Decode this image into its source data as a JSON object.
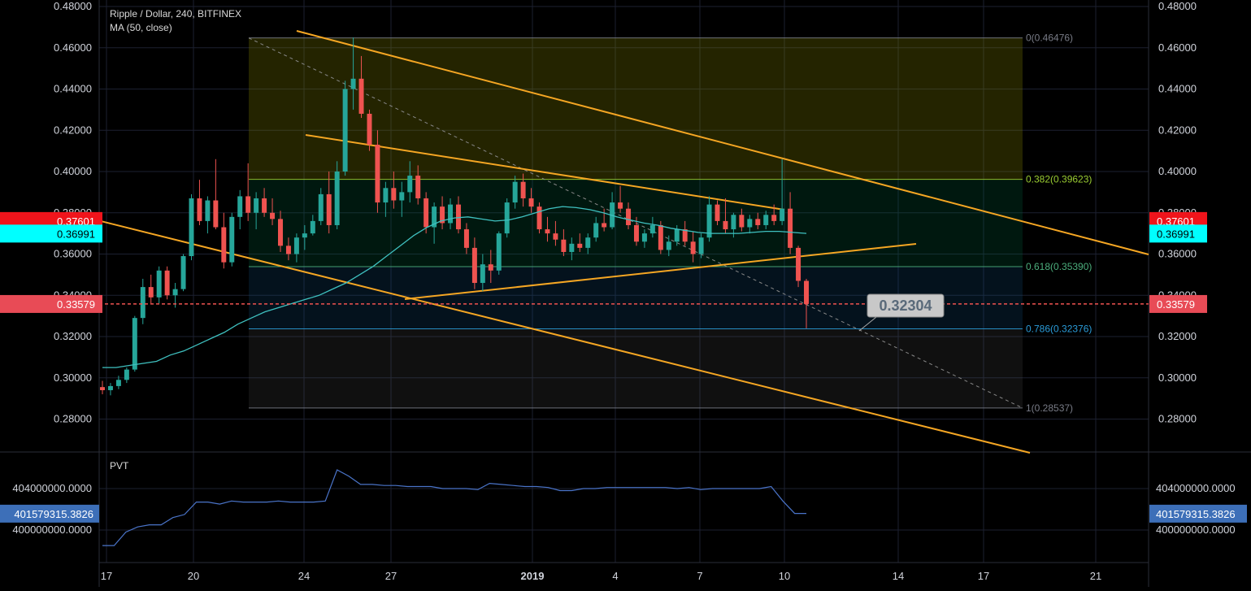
{
  "chart_data": {
    "type": "candlestick",
    "title": "Ripple / Dollar, 240, BITFINEX",
    "indicator_label": "MA (50, close)",
    "pvt_label": "PVT",
    "x_ticks": [
      "17",
      "20",
      "24",
      "27",
      "2019",
      "4",
      "7",
      "10",
      "14",
      "17",
      "21"
    ],
    "y_ticks": [
      "0.48000",
      "0.46000",
      "0.44000",
      "0.42000",
      "0.40000",
      "0.38000",
      "0.36000",
      "0.34000",
      "0.32000",
      "0.30000",
      "0.28000"
    ],
    "ylim": [
      0.276,
      0.4818
    ],
    "pvt_ticks": [
      "404000000.0000",
      "400000000.0000"
    ],
    "pvt_ylim": [
      397600000,
      406300000
    ],
    "price_badges": [
      {
        "value": "0.37601",
        "color": "#f0141b",
        "text_color": "#ffffff"
      },
      {
        "value": "0.36991",
        "color": "#00ffff",
        "text_color": "#000000"
      },
      {
        "value": "0.33579",
        "color": "#e84b56",
        "text_color": "#ffffff"
      }
    ],
    "pvt_badge": {
      "value": "401579315.3826",
      "color": "#3d6fb8",
      "text_color": "#ffffff"
    },
    "last_price": 0.33579,
    "fibonacci": [
      {
        "level": "0",
        "price": 0.46476,
        "label": "0(0.46476)",
        "color": "#787b86"
      },
      {
        "level": "0.382",
        "price": 0.39623,
        "label": "0.382(0.39623)",
        "color": "#9acd32"
      },
      {
        "level": "0.618",
        "price": 0.3539,
        "label": "0.618(0.35390)",
        "color": "#4caf7d"
      },
      {
        "level": "0.786",
        "price": 0.32376,
        "label": "0.786(0.32376)",
        "color": "#2a9bd8"
      },
      {
        "level": "1",
        "price": 0.28537,
        "label": "1(0.28537)",
        "color": "#787b86"
      }
    ],
    "callout_value": "0.32304",
    "series_candles": [
      [
        0.2955,
        0.2985,
        0.292,
        0.294
      ],
      [
        0.294,
        0.2975,
        0.2915,
        0.296
      ],
      [
        0.296,
        0.301,
        0.2945,
        0.299
      ],
      [
        0.299,
        0.305,
        0.2975,
        0.304
      ],
      [
        0.304,
        0.33,
        0.303,
        0.329
      ],
      [
        0.329,
        0.348,
        0.326,
        0.344
      ],
      [
        0.344,
        0.35,
        0.336,
        0.339
      ],
      [
        0.339,
        0.354,
        0.336,
        0.352
      ],
      [
        0.352,
        0.354,
        0.338,
        0.34
      ],
      [
        0.34,
        0.346,
        0.334,
        0.343
      ],
      [
        0.343,
        0.36,
        0.342,
        0.359
      ],
      [
        0.359,
        0.389,
        0.357,
        0.387
      ],
      [
        0.387,
        0.396,
        0.374,
        0.376
      ],
      [
        0.376,
        0.388,
        0.37,
        0.386
      ],
      [
        0.386,
        0.406,
        0.372,
        0.373
      ],
      [
        0.373,
        0.38,
        0.353,
        0.356
      ],
      [
        0.356,
        0.38,
        0.354,
        0.378
      ],
      [
        0.378,
        0.391,
        0.372,
        0.388
      ],
      [
        0.388,
        0.404,
        0.376,
        0.38
      ],
      [
        0.38,
        0.39,
        0.372,
        0.387
      ],
      [
        0.387,
        0.392,
        0.378,
        0.38
      ],
      [
        0.38,
        0.387,
        0.374,
        0.377
      ],
      [
        0.377,
        0.381,
        0.361,
        0.364
      ],
      [
        0.364,
        0.368,
        0.357,
        0.36
      ],
      [
        0.36,
        0.37,
        0.356,
        0.368
      ],
      [
        0.368,
        0.374,
        0.362,
        0.37
      ],
      [
        0.37,
        0.379,
        0.369,
        0.376
      ],
      [
        0.376,
        0.392,
        0.374,
        0.389
      ],
      [
        0.389,
        0.4,
        0.37,
        0.374
      ],
      [
        0.374,
        0.405,
        0.372,
        0.4
      ],
      [
        0.4,
        0.444,
        0.398,
        0.44
      ],
      [
        0.44,
        0.465,
        0.43,
        0.445
      ],
      [
        0.445,
        0.456,
        0.426,
        0.428
      ],
      [
        0.428,
        0.43,
        0.41,
        0.413
      ],
      [
        0.413,
        0.42,
        0.38,
        0.385
      ],
      [
        0.385,
        0.395,
        0.378,
        0.392
      ],
      [
        0.392,
        0.4,
        0.382,
        0.386
      ],
      [
        0.386,
        0.395,
        0.378,
        0.39
      ],
      [
        0.39,
        0.405,
        0.385,
        0.398
      ],
      [
        0.398,
        0.403,
        0.384,
        0.387
      ],
      [
        0.387,
        0.39,
        0.37,
        0.373
      ],
      [
        0.373,
        0.385,
        0.365,
        0.383
      ],
      [
        0.383,
        0.388,
        0.372,
        0.375
      ],
      [
        0.375,
        0.387,
        0.372,
        0.384
      ],
      [
        0.384,
        0.388,
        0.37,
        0.372
      ],
      [
        0.372,
        0.375,
        0.36,
        0.363
      ],
      [
        0.363,
        0.368,
        0.343,
        0.346
      ],
      [
        0.346,
        0.36,
        0.342,
        0.355
      ],
      [
        0.355,
        0.362,
        0.346,
        0.352
      ],
      [
        0.352,
        0.371,
        0.35,
        0.37
      ],
      [
        0.37,
        0.387,
        0.368,
        0.385
      ],
      [
        0.385,
        0.398,
        0.382,
        0.395
      ],
      [
        0.395,
        0.399,
        0.383,
        0.387
      ],
      [
        0.387,
        0.392,
        0.38,
        0.383
      ],
      [
        0.383,
        0.385,
        0.37,
        0.372
      ],
      [
        0.372,
        0.378,
        0.366,
        0.37
      ],
      [
        0.37,
        0.376,
        0.364,
        0.367
      ],
      [
        0.367,
        0.372,
        0.359,
        0.361
      ],
      [
        0.361,
        0.368,
        0.357,
        0.365
      ],
      [
        0.365,
        0.37,
        0.361,
        0.363
      ],
      [
        0.363,
        0.37,
        0.36,
        0.368
      ],
      [
        0.368,
        0.378,
        0.366,
        0.375
      ],
      [
        0.375,
        0.382,
        0.371,
        0.373
      ],
      [
        0.373,
        0.39,
        0.372,
        0.385
      ],
      [
        0.385,
        0.393,
        0.38,
        0.382
      ],
      [
        0.382,
        0.385,
        0.372,
        0.374
      ],
      [
        0.374,
        0.378,
        0.364,
        0.366
      ],
      [
        0.366,
        0.372,
        0.363,
        0.37
      ],
      [
        0.37,
        0.378,
        0.368,
        0.374
      ],
      [
        0.374,
        0.376,
        0.36,
        0.362
      ],
      [
        0.362,
        0.369,
        0.359,
        0.366
      ],
      [
        0.366,
        0.374,
        0.364,
        0.372
      ],
      [
        0.372,
        0.376,
        0.364,
        0.366
      ],
      [
        0.366,
        0.371,
        0.356,
        0.36
      ],
      [
        0.36,
        0.37,
        0.358,
        0.368
      ],
      [
        0.368,
        0.388,
        0.366,
        0.384
      ],
      [
        0.384,
        0.386,
        0.374,
        0.376
      ],
      [
        0.376,
        0.387,
        0.37,
        0.372
      ],
      [
        0.372,
        0.38,
        0.368,
        0.379
      ],
      [
        0.379,
        0.382,
        0.371,
        0.373
      ],
      [
        0.373,
        0.379,
        0.37,
        0.377
      ],
      [
        0.377,
        0.38,
        0.372,
        0.374
      ],
      [
        0.374,
        0.381,
        0.372,
        0.379
      ],
      [
        0.379,
        0.384,
        0.374,
        0.376
      ],
      [
        0.376,
        0.406,
        0.374,
        0.382
      ],
      [
        0.382,
        0.39,
        0.36,
        0.363
      ],
      [
        0.363,
        0.364,
        0.344,
        0.347
      ],
      [
        0.347,
        0.348,
        0.324,
        0.3358
      ]
    ],
    "series_ma": [
      0.305,
      0.305,
      0.306,
      0.307,
      0.308,
      0.311,
      0.313,
      0.316,
      0.319,
      0.322,
      0.326,
      0.329,
      0.332,
      0.334,
      0.336,
      0.338,
      0.34,
      0.343,
      0.346,
      0.35,
      0.354,
      0.359,
      0.364,
      0.369,
      0.373,
      0.376,
      0.3775,
      0.378,
      0.377,
      0.376,
      0.3765,
      0.378,
      0.38,
      0.382,
      0.383,
      0.3825,
      0.3815,
      0.38,
      0.378,
      0.3765,
      0.375,
      0.374,
      0.3725,
      0.3715,
      0.3705,
      0.37,
      0.37,
      0.37,
      0.3705,
      0.371,
      0.371,
      0.3705,
      0.37
    ],
    "series_pvt": [
      398500000,
      398500000,
      399800000,
      400300000,
      400500000,
      400500000,
      401200000,
      401500000,
      402700000,
      402700000,
      402500000,
      402800000,
      402700000,
      402700000,
      402700000,
      402800000,
      402700000,
      402700000,
      402700000,
      402800000,
      405800000,
      405200000,
      404400000,
      404400000,
      404300000,
      404300000,
      404200000,
      404200000,
      404200000,
      404000000,
      404000000,
      404000000,
      403900000,
      404500000,
      404400000,
      404300000,
      404200000,
      404200000,
      404100000,
      403800000,
      403800000,
      404000000,
      404000000,
      404100000,
      404100000,
      404100000,
      404100000,
      404100000,
      404100000,
      404000000,
      404100000,
      403900000,
      404000000,
      404000000,
      404000000,
      404000000,
      404000000,
      404200000,
      402800000,
      401600000,
      401600000
    ]
  }
}
